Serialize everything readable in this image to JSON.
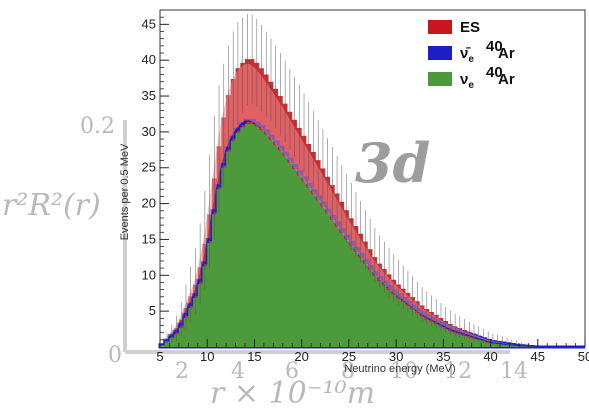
{
  "chart_data": {
    "type": "bar",
    "title": "",
    "xlabel": "Neutrino energy (MeV)",
    "ylabel": "Events per 0.5 MeV",
    "xlim": [
      5,
      50
    ],
    "ylim": [
      0,
      47
    ],
    "x_ticks": [
      "5",
      "10",
      "15",
      "20",
      "25",
      "30",
      "35",
      "40",
      "45",
      "50"
    ],
    "y_ticks": [
      "5",
      "10",
      "15",
      "20",
      "25",
      "30",
      "35",
      "40",
      "45"
    ],
    "bin_width": 0.5,
    "legend_position": "top-right",
    "series": [
      {
        "name": "ES",
        "color": "#c8161d",
        "x": [
          5,
          7,
          9,
          10,
          11,
          12,
          13,
          14,
          14.5,
          15,
          16,
          17,
          18,
          20,
          22,
          25,
          28,
          30,
          33,
          36,
          40,
          43,
          45
        ],
        "values": [
          0,
          3,
          9.5,
          16,
          26,
          34,
          38.5,
          40,
          40.3,
          40,
          38.5,
          36.5,
          34.5,
          30,
          25.5,
          18.5,
          12,
          9,
          5.5,
          3,
          1,
          0.2,
          0
        ]
      },
      {
        "name": "ν̄e 40Ar",
        "color": "#1f1fc8",
        "x": [
          5,
          7,
          9,
          10,
          11,
          12,
          13,
          14,
          14.5,
          15,
          16,
          17,
          18,
          20,
          22,
          25,
          28,
          30,
          33,
          36,
          40,
          43,
          45
        ],
        "values": [
          0,
          2.5,
          8,
          13,
          21,
          27,
          30,
          31.5,
          31.7,
          31.5,
          30.5,
          29,
          27.5,
          24,
          20.5,
          15,
          10,
          7.5,
          4.5,
          2.5,
          0.8,
          0.2,
          0
        ]
      },
      {
        "name": "νe 40Ar",
        "color": "#4c9a3c",
        "x": [
          5,
          7,
          9,
          10,
          11,
          12,
          13,
          14,
          14.5,
          15,
          16,
          17,
          18,
          20,
          22,
          25,
          28,
          30,
          33,
          36,
          40,
          43,
          45
        ],
        "values": [
          0,
          2,
          7.5,
          12.5,
          20.5,
          26.5,
          29.5,
          31,
          31.2,
          31,
          30,
          28.5,
          27,
          23.5,
          20,
          14.5,
          9.5,
          7,
          4,
          2,
          0.5,
          0.1,
          0
        ]
      }
    ],
    "errors": {
      "x": [
        5,
        7,
        9,
        10,
        11,
        12,
        13,
        14,
        14.5,
        15,
        16,
        17,
        18,
        20,
        22,
        25,
        28,
        30,
        33,
        36,
        40,
        43,
        45
      ],
      "upper": [
        0,
        5,
        15,
        24,
        35,
        41,
        45,
        46.3,
        46.5,
        46.2,
        44.5,
        42.5,
        40.5,
        36,
        31,
        23.5,
        16,
        12.5,
        8,
        4.8,
        2,
        0.8,
        0
      ],
      "lower": [
        0,
        1,
        5,
        9,
        17,
        24,
        30,
        33.5,
        34,
        33.8,
        32.5,
        31,
        29,
        25,
        20.5,
        14,
        8.5,
        6,
        3.3,
        1.5,
        0.3,
        0,
        0
      ]
    }
  },
  "legend": {
    "es": "ES",
    "nubar_sup": "40",
    "nubar_main": "Ar",
    "nu_sup": "40",
    "nu_main": "Ar"
  },
  "overlay": {
    "big_label": "3d",
    "y_tick_top": "0.2",
    "y_tick_zero": "0",
    "ylabel_text": "r²R²(r)",
    "xlabel_text": "r × 10⁻¹⁰m",
    "x_ticks": [
      "2",
      "4",
      "6",
      "8",
      "10",
      "12",
      "14"
    ]
  }
}
